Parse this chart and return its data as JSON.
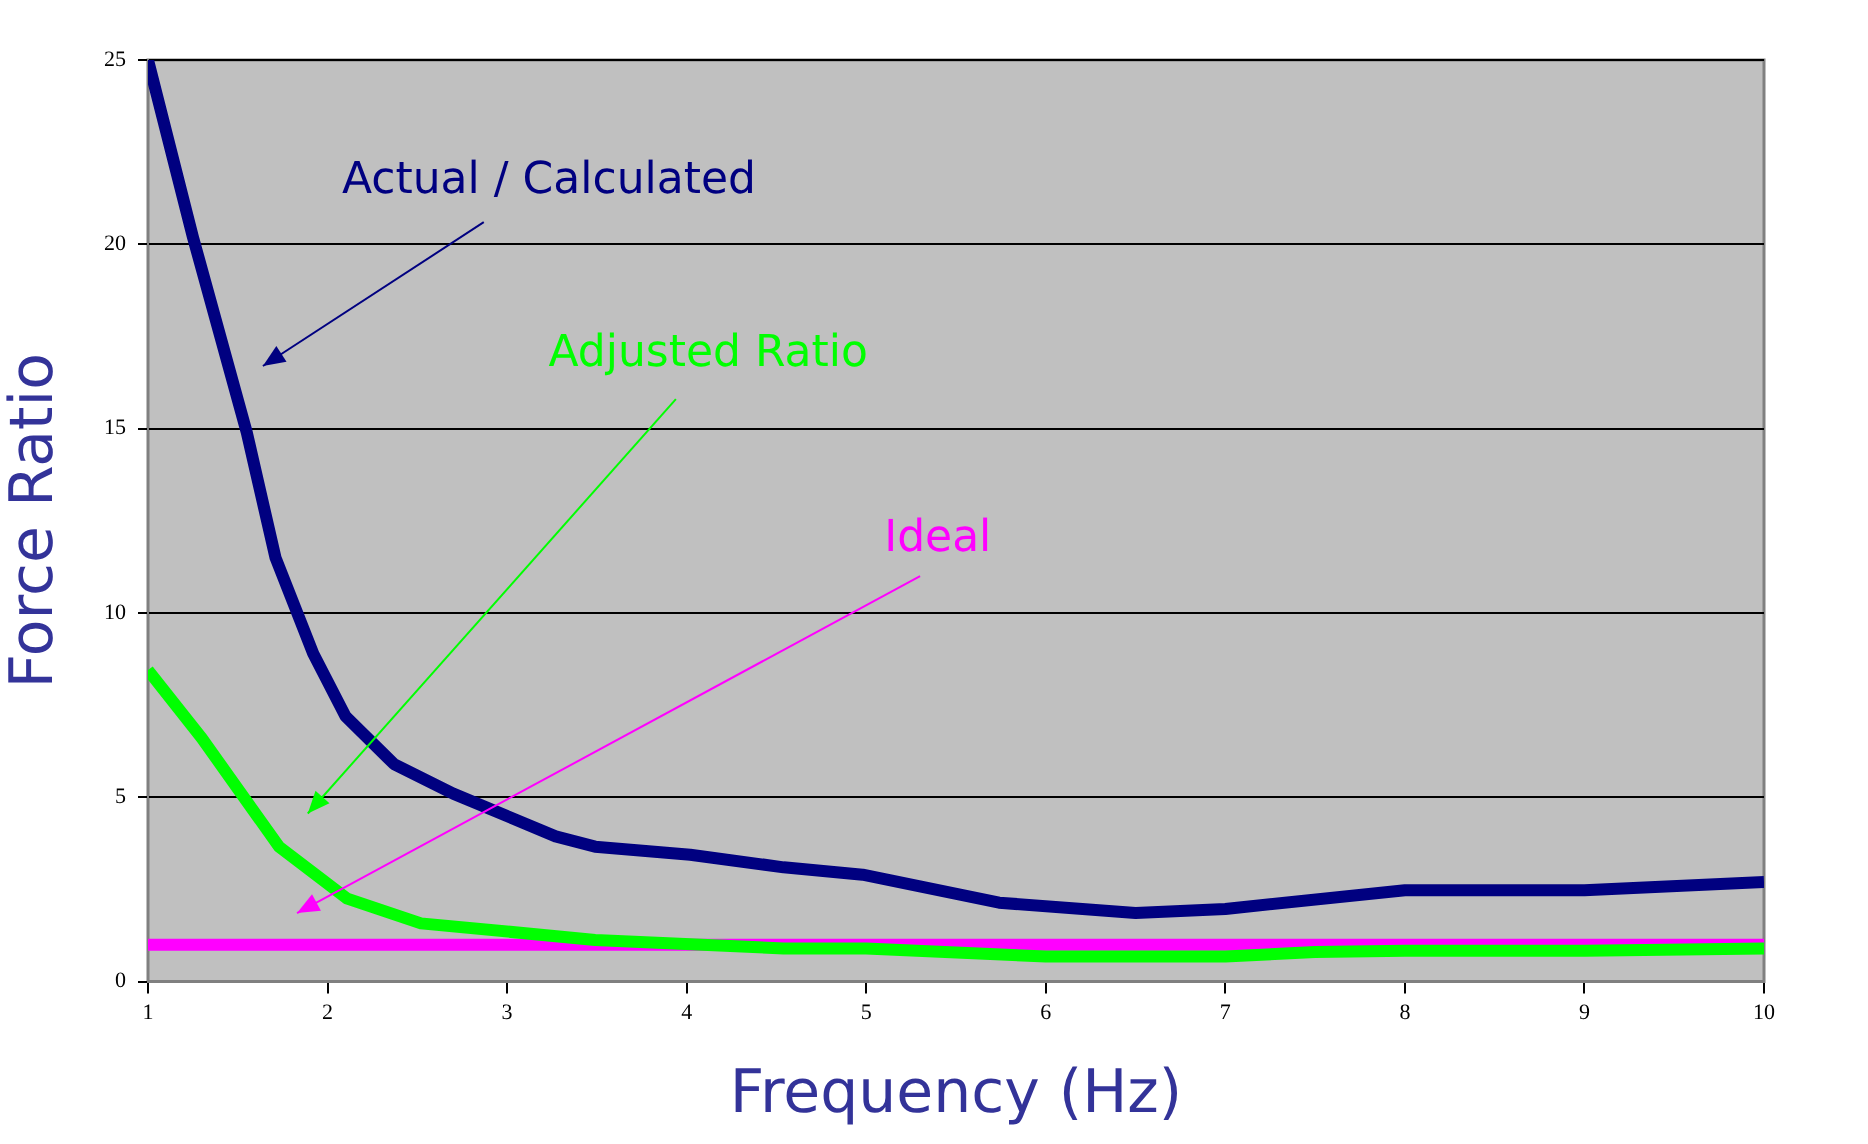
{
  "chart_data": {
    "type": "line",
    "xlabel": "Frequency (Hz)",
    "ylabel": "Force Ratio",
    "xlim": [
      1,
      10
    ],
    "xticks": [
      1,
      2,
      3,
      4,
      5,
      6,
      7,
      8,
      9,
      10
    ],
    "ylim": [
      0,
      25
    ],
    "yticks": [
      0,
      5,
      10,
      15,
      20,
      25
    ],
    "grid": "y",
    "legend": false,
    "marker": "none",
    "line_style": "solid",
    "series": [
      {
        "name": "Actual / Calculated",
        "color": "#000080",
        "x": [
          1,
          1.25,
          1.55,
          1.71,
          1.92,
          2.1,
          2.37,
          2.7,
          3.27,
          3.49,
          4.02,
          4.54,
          4.98,
          5.74,
          6.5,
          7,
          8,
          9,
          10
        ],
        "values": [
          25,
          20.2,
          14.9,
          11.5,
          8.9,
          7.2,
          5.9,
          5.1,
          3.94,
          3.66,
          3.44,
          3.1,
          2.9,
          2.14,
          1.86,
          1.97,
          2.48,
          2.48,
          2.7
        ]
      },
      {
        "name": "Adjusted Ratio",
        "color": "#00ff00",
        "x": [
          1,
          1.3,
          1.73,
          2.11,
          2.52,
          3.49,
          4.54,
          5,
          6,
          7,
          7.5,
          8,
          9,
          10
        ],
        "values": [
          8.45,
          6.6,
          3.66,
          2.25,
          1.58,
          1.13,
          0.9,
          0.9,
          0.68,
          0.68,
          0.8,
          0.84,
          0.84,
          0.9
        ]
      },
      {
        "name": "Ideal",
        "color": "#ff00ff",
        "x": [
          1,
          10
        ],
        "values": [
          1,
          1
        ]
      }
    ]
  }
}
